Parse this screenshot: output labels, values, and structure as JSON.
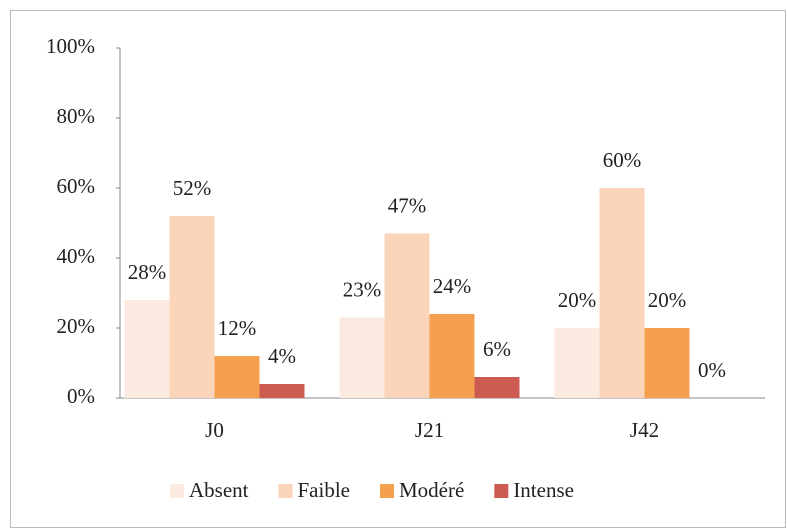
{
  "chart_data": {
    "type": "bar",
    "categories": [
      "J0",
      "J21",
      "J42"
    ],
    "series": [
      {
        "name": "Absent",
        "color": "#fbeadf",
        "values": [
          28,
          23,
          20
        ],
        "value_labels": [
          "28%",
          "23%",
          "20%"
        ]
      },
      {
        "name": "Faible",
        "color": "#fbd5b9",
        "values": [
          52,
          47,
          60
        ],
        "value_labels": [
          "52%",
          "47%",
          "60%"
        ]
      },
      {
        "name": "Modéré",
        "color": "#f5a04e",
        "values": [
          12,
          24,
          20
        ],
        "value_labels": [
          "12%",
          "24%",
          "20%"
        ]
      },
      {
        "name": "Intense",
        "color": "#cd5b52",
        "values": [
          4,
          6,
          0
        ],
        "value_labels": [
          "4%",
          "6%",
          "0%"
        ]
      }
    ],
    "ylim": [
      0,
      100
    ],
    "yticks": [
      {
        "value": 0,
        "label": "0%"
      },
      {
        "value": 20,
        "label": "20%"
      },
      {
        "value": 40,
        "label": "40%"
      },
      {
        "value": 60,
        "label": "60%"
      },
      {
        "value": 80,
        "label": "80%"
      },
      {
        "value": 100,
        "label": "100%"
      }
    ],
    "grid": false,
    "legend": "bottom"
  }
}
